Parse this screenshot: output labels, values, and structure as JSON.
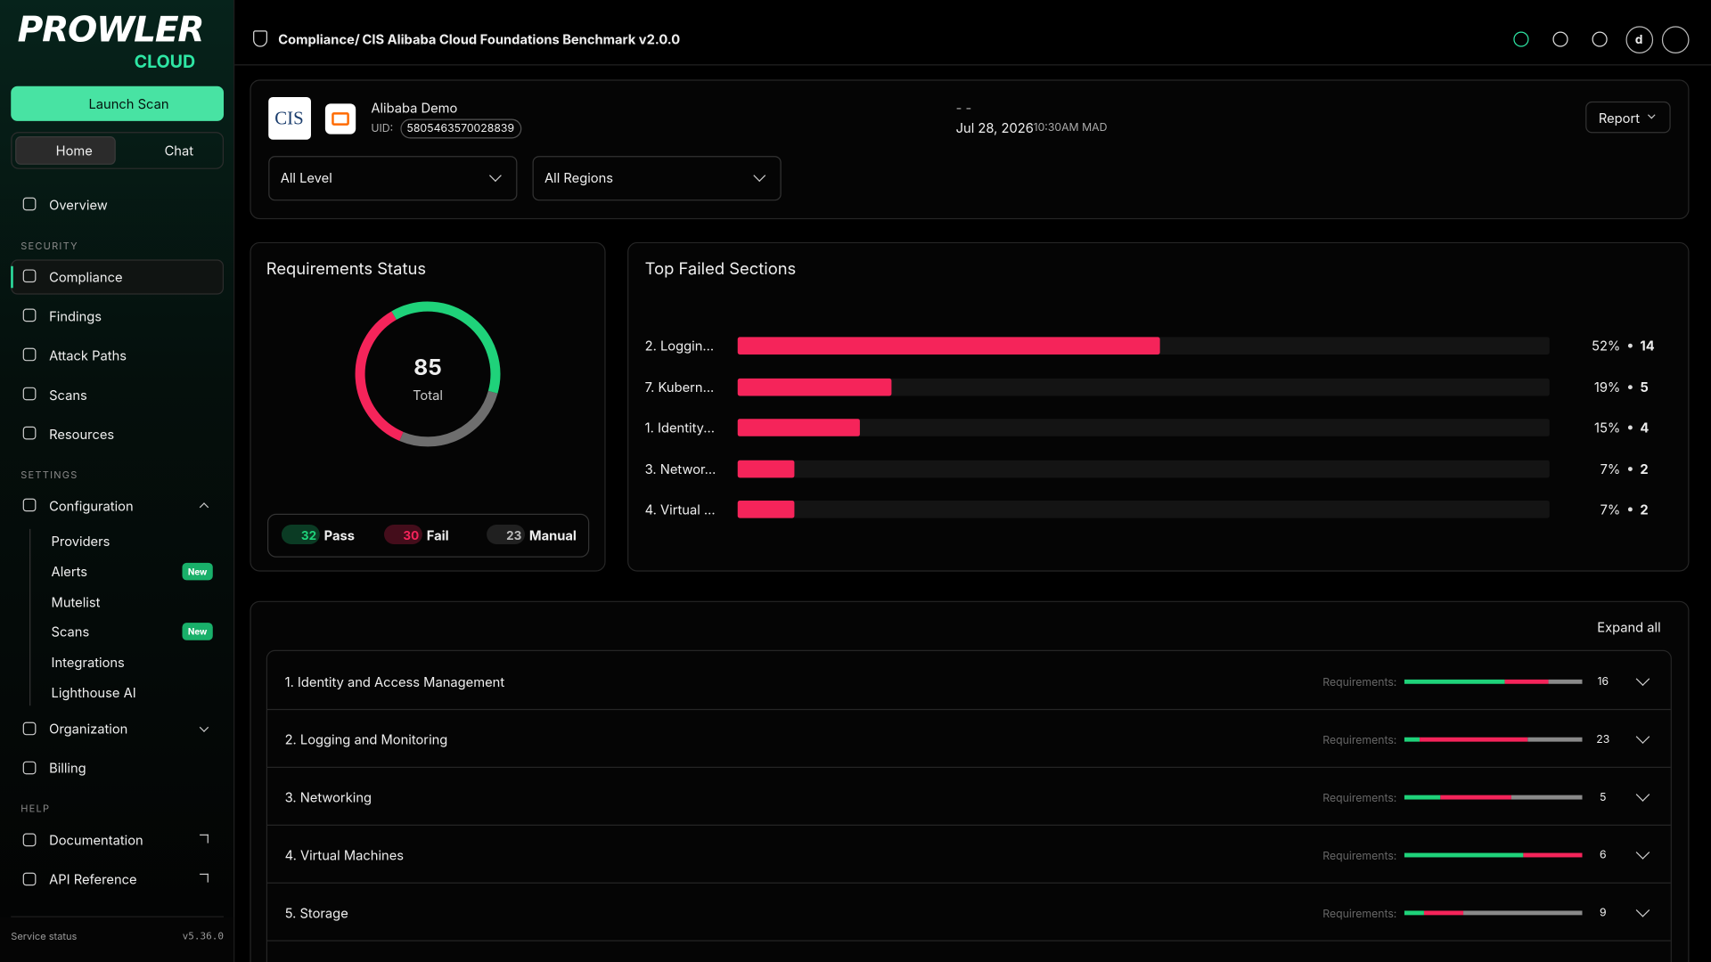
{
  "brand": {
    "name": "PROWLER",
    "sub": "CLOUD"
  },
  "sidebar": {
    "launch_button": "Launch Scan",
    "tabs": [
      "Home",
      "Chat"
    ],
    "overview": "Overview",
    "security": {
      "heading": "SECURITY",
      "items": [
        "Compliance",
        "Findings",
        "Attack Paths",
        "Scans",
        "Resources"
      ]
    },
    "settings": {
      "heading": "SETTINGS",
      "configuration": "Configuration",
      "sub_items": [
        {
          "label": "Providers"
        },
        {
          "label": "Alerts",
          "badge": "New"
        },
        {
          "label": "Mutelist"
        },
        {
          "label": "Scans",
          "badge": "New"
        },
        {
          "label": "Integrations"
        },
        {
          "label": "Lighthouse AI"
        }
      ],
      "organization": "Organization",
      "billing": "Billing"
    },
    "help": {
      "heading": "HELP",
      "items": [
        "Documentation",
        "API Reference"
      ]
    },
    "footer": {
      "status": "Service status",
      "version": "v5.36.0"
    }
  },
  "header": {
    "breadcrumb": [
      "Compliance",
      "CIS Alibaba Cloud Foundations Benchmark v2.0.0"
    ],
    "separator": "/",
    "avatar": "d"
  },
  "scan_card": {
    "logo": "CIS",
    "provider": "Alibaba Demo",
    "uid_label": "UID:",
    "uid": "5805463570028839",
    "placeholder": "- -",
    "date": "Jul 28, 2026",
    "time": "10:30AM MAD",
    "report": "Report",
    "filters": [
      "All Level",
      "All Regions"
    ]
  },
  "requirements_status": {
    "title": "Requirements Status",
    "total": 85,
    "total_label": "Total",
    "items": [
      {
        "label": "Pass",
        "value": 32,
        "color": "#1fd27a"
      },
      {
        "label": "Fail",
        "value": 30,
        "color": "#f5245a"
      },
      {
        "label": "Manual",
        "value": 23,
        "color": "#6e6e6e"
      }
    ]
  },
  "top_failed": {
    "title": "Top Failed Sections",
    "color": "#f5245a",
    "sections": [
      {
        "label": "2. Loggin...",
        "percent": 52,
        "percent_label": "52%",
        "count": 14
      },
      {
        "label": "7. Kubern...",
        "percent": 19,
        "percent_label": "19%",
        "count": 5
      },
      {
        "label": "1. Identity...",
        "percent": 15,
        "percent_label": "15%",
        "count": 4
      },
      {
        "label": "3. Networ...",
        "percent": 7,
        "percent_label": "7%",
        "count": 2
      },
      {
        "label": "4. Virtual ...",
        "percent": 7,
        "percent_label": "7%",
        "count": 2
      }
    ]
  },
  "requirements": {
    "expand": "Expand all",
    "label": "Requirements:",
    "sections": [
      {
        "name": "1. Identity and Access Management",
        "total": 16,
        "pass": 9,
        "fail": 4,
        "manual": 3
      },
      {
        "name": "2. Logging and Monitoring",
        "total": 23,
        "pass": 2,
        "fail": 14,
        "manual": 7
      },
      {
        "name": "3. Networking",
        "total": 5,
        "pass": 1,
        "fail": 2,
        "manual": 2
      },
      {
        "name": "4. Virtual Machines",
        "total": 6,
        "pass": 4,
        "fail": 2,
        "manual": 0
      },
      {
        "name": "5. Storage",
        "total": 9,
        "pass": 1,
        "fail": 2,
        "manual": 6
      }
    ]
  }
}
